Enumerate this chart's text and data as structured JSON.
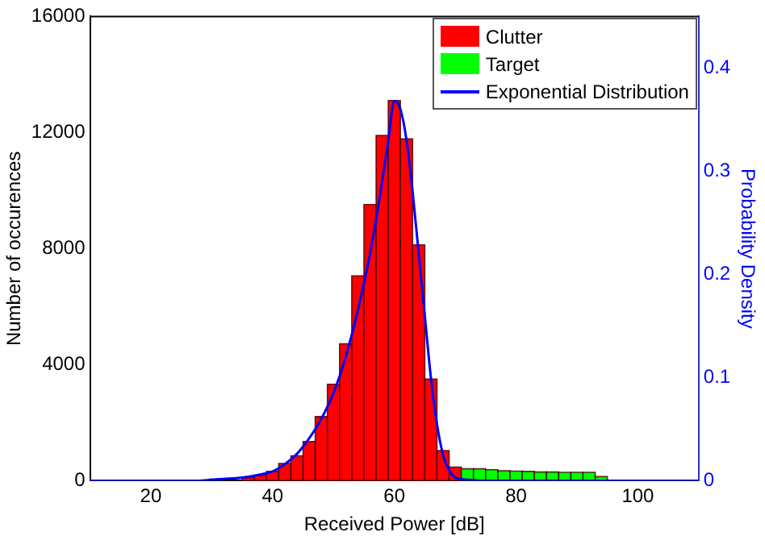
{
  "chart_data": {
    "type": "histogram",
    "xlabel": "Received Power [dB]",
    "ylabel": "Number of occurences",
    "y2label": "Probability Density",
    "bins": [
      35,
      37,
      39,
      41,
      43,
      45,
      47,
      49,
      51,
      53,
      55,
      57,
      59,
      61,
      63,
      65,
      67,
      69,
      71,
      73,
      75,
      77,
      79,
      81,
      83,
      85,
      87,
      89,
      91,
      93,
      95
    ],
    "series": [
      {
        "name": "Clutter",
        "color": "#ff0000",
        "values": [
          100,
          180,
          320,
          590,
          860,
          1350,
          2210,
          3320,
          4720,
          7060,
          9520,
          11900,
          13100,
          11780,
          8130,
          3500,
          1040,
          470,
          null,
          null,
          null,
          null,
          null,
          null,
          null,
          null,
          null,
          null,
          null,
          null
        ]
      },
      {
        "name": "Target",
        "color": "#00ff00",
        "values": [
          null,
          null,
          null,
          null,
          null,
          null,
          null,
          null,
          null,
          null,
          null,
          null,
          null,
          null,
          null,
          null,
          null,
          null,
          410,
          410,
          380,
          340,
          330,
          320,
          300,
          300,
          290,
          290,
          290,
          140
        ]
      },
      {
        "name": "Exponential Distribution",
        "type": "line",
        "axis": "y2",
        "color": "#0000ff",
        "x": [
          10,
          28,
          30,
          35,
          38,
          40,
          42,
          44,
          46,
          48,
          50,
          52,
          54,
          56,
          58,
          59,
          60,
          61,
          62,
          63,
          64,
          65,
          66,
          67,
          68,
          69,
          70,
          72,
          75,
          100,
          110
        ],
        "values": [
          0,
          0,
          0.001,
          0.003,
          0.006,
          0.009,
          0.016,
          0.026,
          0.041,
          0.06,
          0.085,
          0.12,
          0.165,
          0.22,
          0.29,
          0.33,
          0.368,
          0.36,
          0.33,
          0.28,
          0.22,
          0.16,
          0.1,
          0.055,
          0.025,
          0.01,
          0.003,
          0.001,
          0,
          0,
          0
        ]
      }
    ],
    "xlim": [
      10,
      110
    ],
    "xticks": [
      20,
      40,
      60,
      80,
      100
    ],
    "ylim": [
      0,
      16000
    ],
    "yticks": [
      0,
      4000,
      8000,
      12000,
      16000
    ],
    "y2lim": [
      0,
      0.45
    ],
    "y2ticks": [
      0,
      0.1,
      0.2,
      0.3,
      0.4
    ],
    "grid": false,
    "legend": "top right"
  }
}
